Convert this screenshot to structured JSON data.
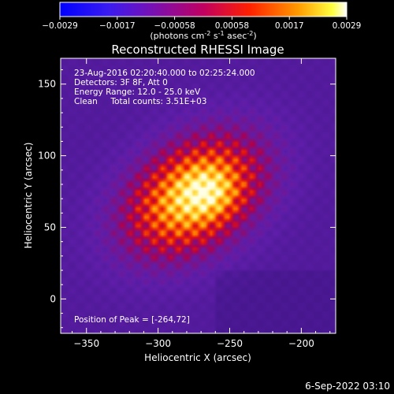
{
  "colorbar": {
    "ticks": [
      "-0.0029",
      "-0.0017",
      "-0.00058",
      "0.00058",
      "0.0017",
      "0.0029"
    ],
    "units_main": "(photons cm",
    "units_exp1": "-2",
    "units_mid": " s",
    "units_exp2": "-1",
    "units_end": " asec",
    "units_exp3": "-2",
    "units_close": ")"
  },
  "title": "Reconstructed RHESSI Image",
  "info": {
    "time_range": "23-Aug-2016 02:20:40.000 to 02:25:24.000",
    "detectors": "Detectors: 3F 8F, Att 0",
    "energy": "Energy Range: 12.0 - 25.0 keV",
    "clean": "Clean     Total counts: 3.51E+03",
    "peak": "Position of Peak = [-264,72]"
  },
  "footer_date": "6-Sep-2022 03:10",
  "chart_data": {
    "type": "heatmap",
    "title": "Reconstructed RHESSI Image",
    "xlabel": "Heliocentric X (arcsec)",
    "ylabel": "Heliocentric Y (arcsec)",
    "xlim": [
      -368,
      -176
    ],
    "ylim": [
      -24,
      168
    ],
    "xticks": [
      -350,
      -300,
      -250,
      -200
    ],
    "yticks": [
      0,
      50,
      100,
      150
    ],
    "xtick_labels": [
      "−350",
      "−300",
      "−250",
      "−200"
    ],
    "ytick_labels": [
      "0",
      "50",
      "100",
      "150"
    ],
    "peak": [
      -264,
      72
    ],
    "colorbar_range": [
      -0.0029,
      0.0029
    ],
    "colormap": "blue-purple-red-yellow-white",
    "emission_center": [
      -275,
      72
    ],
    "emission_axes_arcsec": [
      62,
      42
    ],
    "emission_tilt_deg": 35
  }
}
